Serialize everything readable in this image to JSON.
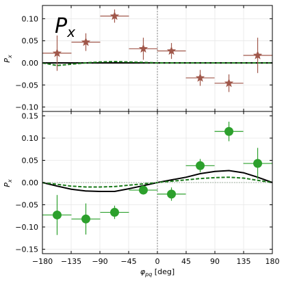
{
  "chart_data": [
    {
      "type": "scatter",
      "panel": "top",
      "annotation": "P_x",
      "ylabel": "P_x",
      "xlim": [
        -180,
        180
      ],
      "ylim": [
        -0.11,
        0.13
      ],
      "yticks": [
        -0.1,
        -0.05,
        0.0,
        0.05,
        0.1
      ],
      "ytick_labels": [
        "−0.10",
        "−0.05",
        "0.00",
        "0.05",
        "0.10"
      ],
      "grid": true,
      "points": {
        "marker": "star",
        "color": "#a0574a",
        "x": [
          -157,
          -112,
          -67,
          -22,
          22,
          67,
          112,
          157
        ],
        "y": [
          0.022,
          0.047,
          0.106,
          0.032,
          0.027,
          -0.034,
          -0.046,
          0.017
        ],
        "yerr": [
          0.04,
          0.02,
          0.015,
          0.025,
          0.018,
          0.018,
          0.02,
          0.04
        ],
        "xerr": [
          22.5,
          22.5,
          22.5,
          22.5,
          22.5,
          22.5,
          22.5,
          22.5
        ]
      },
      "curves": [
        {
          "style": "solid",
          "color": "#000000",
          "x": [
            -180,
            -135,
            -90,
            -45,
            0,
            45,
            90,
            135,
            180
          ],
          "y": [
            0.0,
            0.0,
            0.0,
            0.0,
            0.0,
            0.0,
            0.0,
            0.0,
            0.0
          ]
        },
        {
          "style": "dashed",
          "color": "#1a7a1a",
          "x": [
            -180,
            -157,
            -135,
            -112,
            -90,
            -67,
            -45,
            -22,
            0,
            22,
            45,
            90,
            135,
            180
          ],
          "y": [
            0.0,
            -0.006,
            -0.003,
            0.0,
            0.002,
            0.003,
            0.002,
            0.001,
            0.0,
            0.0,
            0.0,
            0.0,
            0.0,
            0.0
          ]
        }
      ]
    },
    {
      "type": "scatter",
      "panel": "bottom",
      "ylabel": "P_x",
      "xlabel": "φ_pq [deg]",
      "xlim": [
        -180,
        180
      ],
      "ylim": [
        -0.16,
        0.16
      ],
      "xticks": [
        -180,
        -135,
        -90,
        -45,
        0,
        45,
        90,
        135,
        180
      ],
      "xtick_labels": [
        "−180",
        "−135",
        "−90",
        "−45",
        "0",
        "45",
        "90",
        "135",
        "180"
      ],
      "yticks": [
        -0.15,
        -0.1,
        -0.05,
        0.0,
        0.05,
        0.1,
        0.15
      ],
      "ytick_labels": [
        "−0.15",
        "−0.10",
        "−0.05",
        "0.00",
        "0.05",
        "0.10",
        "0.15"
      ],
      "grid": true,
      "points": {
        "marker": "circle",
        "color": "#2ca02c",
        "x": [
          -157,
          -112,
          -67,
          -22,
          22,
          67,
          112,
          157
        ],
        "y": [
          -0.073,
          -0.082,
          -0.067,
          -0.017,
          -0.026,
          0.038,
          0.115,
          0.043
        ],
        "yerr": [
          0.045,
          0.035,
          0.015,
          0.01,
          0.015,
          0.015,
          0.022,
          0.035
        ],
        "xerr": [
          22.5,
          22.5,
          22.5,
          22.5,
          22.5,
          22.5,
          22.5,
          22.5
        ]
      },
      "curves": [
        {
          "style": "solid",
          "color": "#000000",
          "x": [
            -180,
            -157,
            -135,
            -112,
            -90,
            -67,
            -45,
            -22,
            0,
            22,
            45,
            67,
            90,
            112,
            135,
            157,
            180
          ],
          "y": [
            0.0,
            -0.008,
            -0.015,
            -0.019,
            -0.02,
            -0.02,
            -0.014,
            -0.007,
            0.0,
            0.006,
            0.012,
            0.02,
            0.025,
            0.027,
            0.022,
            0.012,
            0.0
          ]
        },
        {
          "style": "dashed",
          "color": "#1a7a1a",
          "x": [
            -180,
            -157,
            -135,
            -112,
            -90,
            -67,
            -45,
            -22,
            0,
            22,
            45,
            67,
            90,
            112,
            135,
            157,
            180
          ],
          "y": [
            0.0,
            -0.004,
            -0.008,
            -0.01,
            -0.01,
            -0.009,
            -0.006,
            -0.003,
            0.0,
            0.003,
            0.006,
            0.009,
            0.011,
            0.012,
            0.01,
            0.005,
            0.0
          ]
        },
        {
          "style": "dotted",
          "color": "#8aa08a",
          "x": [
            -180,
            180
          ],
          "y": [
            0.0,
            0.0
          ]
        }
      ]
    }
  ]
}
